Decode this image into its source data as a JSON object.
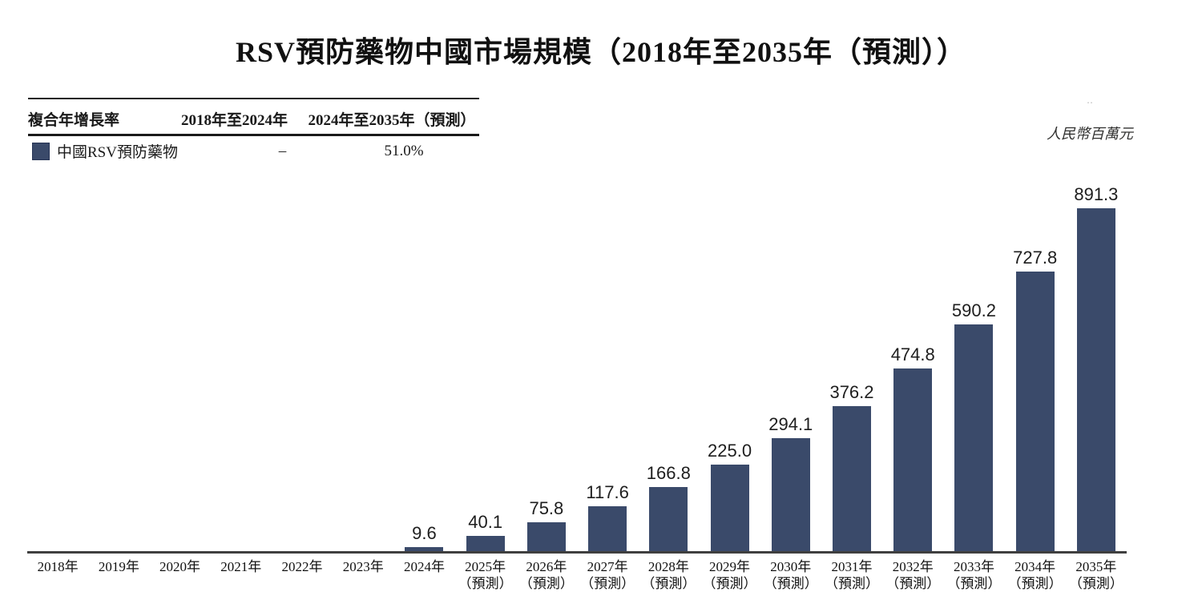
{
  "page": {
    "title": "RSV預防藥物中國市場規模（2018年至2035年（預測））",
    "unit_label": "人民幣百萬元",
    "artifact_mark": "‥"
  },
  "cagr_table": {
    "columns": [
      "複合年增長率",
      "2018年至2024年",
      "2024年至2035年（預測）"
    ],
    "rows": [
      {
        "label": "中國RSV預防藥物",
        "cagr_2018_2024": "–",
        "cagr_2024_2035": "51.0%"
      }
    ]
  },
  "chart_data": {
    "type": "bar",
    "title": "RSV預防藥物中國市場規模（2018年至2035年（預測））",
    "ylabel": "人民幣百萬元",
    "series_name": "中國RSV預防藥物",
    "categories": [
      "2018年",
      "2019年",
      "2020年",
      "2021年",
      "2022年",
      "2023年",
      "2024年",
      "2025年",
      "2026年",
      "2027年",
      "2028年",
      "2029年",
      "2030年",
      "2031年",
      "2032年",
      "2033年",
      "2034年",
      "2035年"
    ],
    "forecast_from_index": 7,
    "forecast_suffix": "（預測）",
    "values": [
      null,
      null,
      null,
      null,
      null,
      null,
      9.6,
      40.1,
      75.8,
      117.6,
      166.8,
      225.0,
      294.1,
      376.2,
      474.8,
      590.2,
      727.8,
      891.3
    ],
    "value_labels": [
      null,
      null,
      null,
      null,
      null,
      null,
      "9.6",
      "40.1",
      "75.8",
      "117.6",
      "166.8",
      "225.0",
      "294.1",
      "376.2",
      "474.8",
      "590.2",
      "727.8",
      "891.3"
    ],
    "bar_color": "#3a4a6a",
    "ylim": [
      0,
      920
    ],
    "grid": false,
    "legend_position": "top-left-table"
  }
}
